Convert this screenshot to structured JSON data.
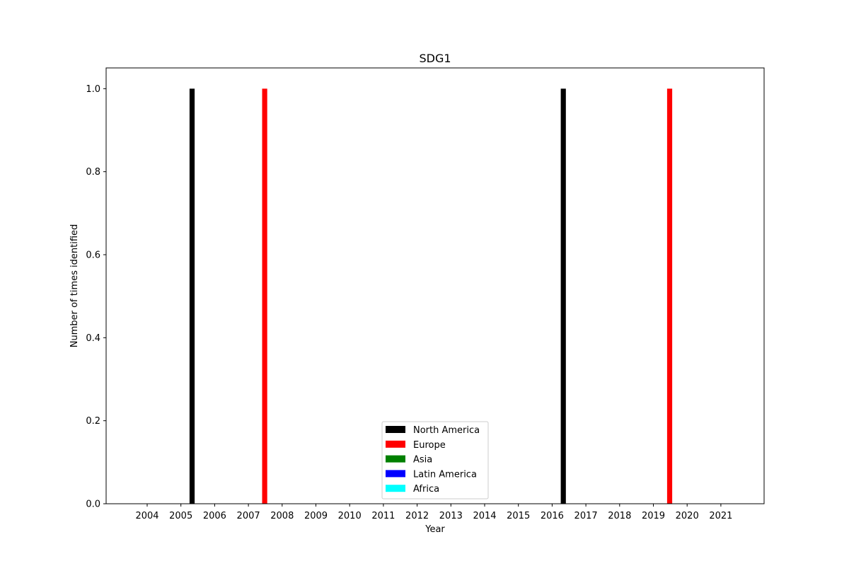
{
  "chart_data": {
    "type": "bar",
    "title": "SDG1",
    "xlabel": "Year",
    "ylabel": "Number of times identified",
    "categories": [
      "2004",
      "2005",
      "2006",
      "2007",
      "2008",
      "2009",
      "2010",
      "2011",
      "2012",
      "2013",
      "2014",
      "2015",
      "2016",
      "2017",
      "2018",
      "2019",
      "2020",
      "2021"
    ],
    "series": [
      {
        "name": "North America",
        "color": "#000000",
        "values": [
          0,
          0,
          1,
          0,
          0,
          0,
          0,
          0,
          0,
          0,
          0,
          0,
          0,
          1,
          0,
          0,
          0,
          0
        ]
      },
      {
        "name": "Europe",
        "color": "#ff0000",
        "values": [
          0,
          0,
          0,
          0,
          1,
          0,
          0,
          0,
          0,
          0,
          0,
          0,
          0,
          0,
          0,
          0,
          1,
          0
        ]
      },
      {
        "name": "Asia",
        "color": "#008000",
        "values": [
          0,
          0,
          0,
          0,
          0,
          0,
          0,
          0,
          0,
          0,
          0,
          0,
          0,
          0,
          0,
          0,
          0,
          0
        ]
      },
      {
        "name": "Latin America",
        "color": "#0000ff",
        "values": [
          0,
          0,
          0,
          0,
          0,
          0,
          0,
          0,
          0,
          0,
          0,
          0,
          0,
          0,
          0,
          0,
          0,
          0
        ]
      },
      {
        "name": "Africa",
        "color": "#00ffff",
        "values": [
          0,
          0,
          0,
          0,
          0,
          0,
          0,
          0,
          0,
          0,
          0,
          0,
          0,
          0,
          0,
          0,
          0,
          0
        ]
      }
    ],
    "yticks": [
      "0.0",
      "0.2",
      "0.4",
      "0.6",
      "0.8",
      "1.0"
    ],
    "ylim": [
      0,
      1.05
    ],
    "grid": false,
    "legend_position": "lower-center"
  }
}
